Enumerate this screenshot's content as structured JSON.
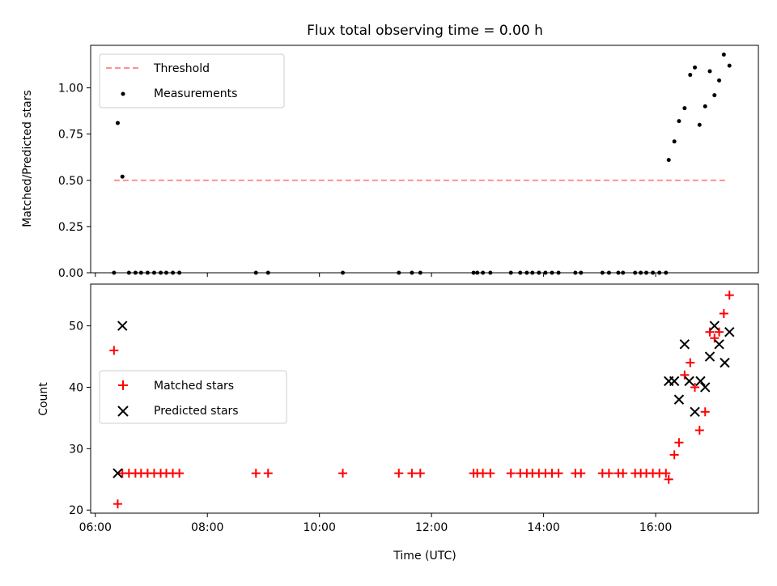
{
  "chart_data": [
    {
      "type": "scatter",
      "title": "Flux total observing time = 0.00 h",
      "xlabel": "",
      "ylabel": "Matched/Predicted stars",
      "ylim": [
        0,
        1.23
      ],
      "yticks": [
        "0.00",
        "0.25",
        "0.50",
        "0.75",
        "1.00"
      ],
      "ytick_values": [
        0,
        0.25,
        0.5,
        0.75,
        1.0
      ],
      "legend_position": "top-left",
      "series": [
        {
          "name": "Threshold",
          "kind": "dashed-line",
          "color": "#ff8080",
          "x": [
            "06:20",
            "17:16"
          ],
          "y": [
            0.5,
            0.5
          ]
        },
        {
          "name": "Measurements",
          "kind": "dots",
          "color": "#000000",
          "x": [
            "06:20",
            "06:24",
            "06:29",
            "06:36",
            "06:43",
            "06:49",
            "06:56",
            "07:03",
            "07:10",
            "07:16",
            "07:23",
            "07:30",
            "08:52",
            "09:05",
            "10:25",
            "11:25",
            "11:39",
            "11:48",
            "12:45",
            "12:49",
            "12:55",
            "13:03",
            "13:25",
            "13:35",
            "13:42",
            "13:48",
            "13:55",
            "14:02",
            "14:09",
            "14:16",
            "14:34",
            "14:40",
            "15:03",
            "15:10",
            "15:20",
            "15:25",
            "15:38",
            "15:44",
            "15:50",
            "15:57",
            "16:04",
            "16:11",
            "16:14",
            "16:20",
            "16:25",
            "16:31",
            "16:37",
            "16:42",
            "16:47",
            "16:53",
            "16:58",
            "17:03",
            "17:08",
            "17:13",
            "17:19"
          ],
          "y": [
            0,
            0.81,
            0.52,
            0,
            0,
            0,
            0,
            0,
            0,
            0,
            0,
            0,
            0,
            0,
            0,
            0,
            0,
            0,
            0,
            0,
            0,
            0,
            0,
            0,
            0,
            0,
            0,
            0,
            0,
            0,
            0,
            0,
            0,
            0,
            0,
            0,
            0,
            0,
            0,
            0,
            0,
            0,
            0.61,
            0.71,
            0.82,
            0.89,
            1.07,
            1.11,
            0.8,
            0.9,
            1.09,
            0.96,
            1.04,
            1.18,
            1.12
          ]
        }
      ]
    },
    {
      "type": "scatter",
      "title": "",
      "xlabel": "Time (UTC)",
      "ylabel": "Count",
      "xlim": [
        "05:55",
        "17:50"
      ],
      "xticks": [
        "06:00",
        "08:00",
        "10:00",
        "12:00",
        "14:00",
        "16:00"
      ],
      "ylim": [
        19.5,
        56.8
      ],
      "yticks": [
        "20",
        "30",
        "40",
        "50"
      ],
      "ytick_values": [
        20,
        30,
        40,
        50
      ],
      "legend_position": "center-left",
      "series": [
        {
          "name": "Matched stars",
          "marker": "plus",
          "color": "#ff0000",
          "x": [
            "06:20",
            "06:24",
            "06:29",
            "06:36",
            "06:43",
            "06:49",
            "06:56",
            "07:03",
            "07:10",
            "07:16",
            "07:23",
            "07:30",
            "08:52",
            "09:05",
            "10:25",
            "11:25",
            "11:39",
            "11:48",
            "12:45",
            "12:49",
            "12:55",
            "13:03",
            "13:25",
            "13:35",
            "13:42",
            "13:48",
            "13:55",
            "14:02",
            "14:09",
            "14:16",
            "14:34",
            "14:40",
            "15:03",
            "15:10",
            "15:20",
            "15:25",
            "15:38",
            "15:44",
            "15:50",
            "15:57",
            "16:04",
            "16:11",
            "16:14",
            "16:20",
            "16:25",
            "16:31",
            "16:37",
            "16:42",
            "16:47",
            "16:53",
            "16:58",
            "17:03",
            "17:08",
            "17:13",
            "17:19"
          ],
          "y": [
            46,
            21,
            26,
            26,
            26,
            26,
            26,
            26,
            26,
            26,
            26,
            26,
            26,
            26,
            26,
            26,
            26,
            26,
            26,
            26,
            26,
            26,
            26,
            26,
            26,
            26,
            26,
            26,
            26,
            26,
            26,
            26,
            26,
            26,
            26,
            26,
            26,
            26,
            26,
            26,
            26,
            26,
            25,
            29,
            31,
            42,
            44,
            40,
            33,
            36,
            49,
            48,
            49,
            52,
            55
          ]
        },
        {
          "name": "Predicted stars",
          "marker": "x",
          "color": "#000000",
          "x": [
            "06:24",
            "06:29",
            "16:14",
            "16:20",
            "16:25",
            "16:31",
            "16:36",
            "16:42",
            "16:48",
            "16:53",
            "16:58",
            "17:03",
            "17:08",
            "17:14",
            "17:19"
          ],
          "y": [
            26,
            50,
            41,
            41,
            38,
            47,
            41,
            36,
            41,
            40,
            45,
            50,
            47,
            44,
            49
          ]
        }
      ]
    }
  ]
}
